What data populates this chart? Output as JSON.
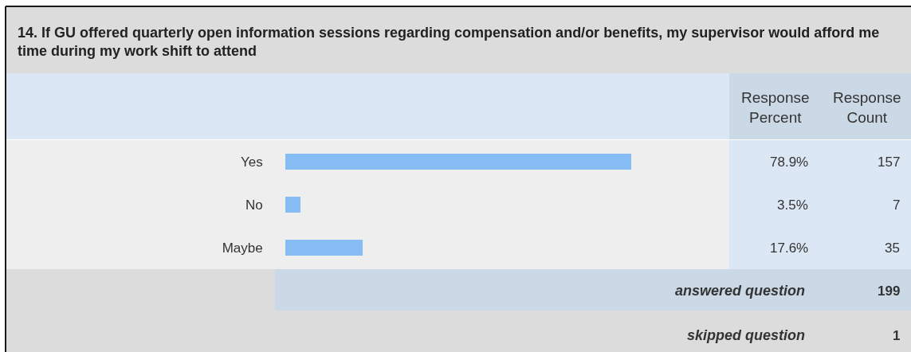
{
  "chart_data": {
    "type": "bar",
    "orientation": "horizontal",
    "title": "14. If GU offered quarterly open information sessions regarding compensation and/or benefits, my supervisor would afford me time during my work shift to attend",
    "categories": [
      "Yes",
      "No",
      "Maybe"
    ],
    "values": [
      78.9,
      3.5,
      17.6
    ],
    "value_labels": [
      "78.9%",
      "3.5%",
      "17.6%"
    ],
    "color": "#86bdf5",
    "tick_labels": "y",
    "annotations": [
      "Response Percent",
      "Response Count",
      "157",
      "7",
      "35",
      "answered question",
      "199",
      "skipped question",
      "1"
    ]
  }
}
